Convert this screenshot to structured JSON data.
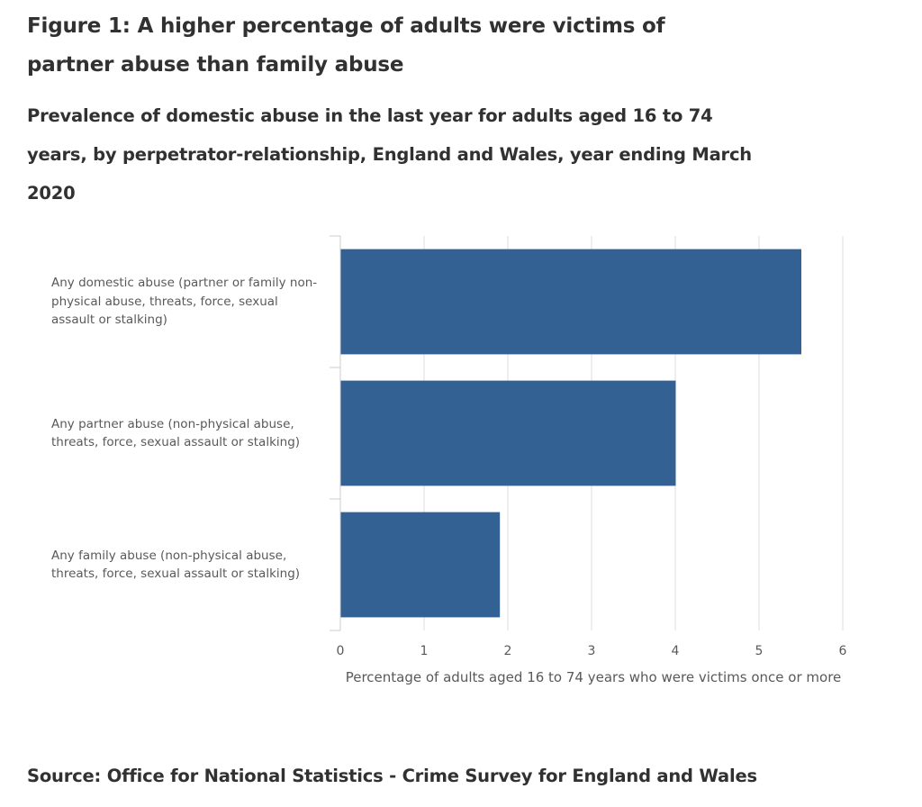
{
  "title": "Figure 1: A higher percentage of adults were victims of partner abuse than family abuse",
  "subtitle": "Prevalence of domestic abuse in the last year for adults aged 16 to 74 years, by perpetrator-relationship, England and Wales, year ending March 2020",
  "source": "Source: Office for National Statistics - Crime Survey for England and Wales",
  "chart_data": {
    "type": "bar",
    "orientation": "horizontal",
    "categories": [
      "Any domestic abuse (partner or family non-physical abuse, threats, force, sexual assault or stalking)",
      "Any partner abuse (non-physical abuse, threats, force, sexual assault or stalking)",
      "Any family abuse (non-physical abuse, threats, force, sexual assault or stalking)"
    ],
    "values": [
      5.5,
      4.0,
      1.9
    ],
    "xlabel": "Percentage of adults aged 16 to 74 years who were victims once or more",
    "xlim": [
      0,
      6
    ],
    "xticks": [
      "0",
      "1",
      "2",
      "3",
      "4",
      "5",
      "6"
    ],
    "grid": true,
    "bar_color": "#336193",
    "grid_color": "#dddddd"
  }
}
